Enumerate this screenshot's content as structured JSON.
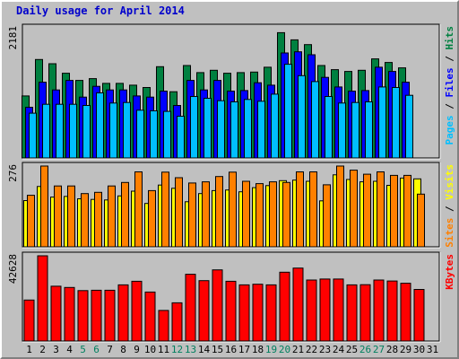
{
  "chart_data": {
    "type": "bar",
    "title": "Daily usage for April 2014",
    "categories": [
      "1",
      "2",
      "3",
      "4",
      "5",
      "6",
      "7",
      "8",
      "9",
      "10",
      "11",
      "12",
      "13",
      "14",
      "15",
      "16",
      "17",
      "18",
      "19",
      "20",
      "21",
      "22",
      "23",
      "24",
      "25",
      "26",
      "27",
      "28",
      "29",
      "30",
      "31"
    ],
    "weekend_categories": [
      "5",
      "6",
      "12",
      "13",
      "19",
      "20",
      "26",
      "27"
    ],
    "panels": [
      {
        "max_label": "2181",
        "ymax": 2181,
        "series": [
          {
            "name": "Hits",
            "color": "#008040",
            "values": [
              1040,
              1650,
              1580,
              1420,
              1300,
              1330,
              1250,
              1250,
              1220,
              1180,
              1530,
              1110,
              1550,
              1430,
              1470,
              1420,
              1430,
              1440,
              1520,
              2100,
              1980,
              1900,
              1550,
              1480,
              1450,
              1470,
              1660,
              1600,
              1510,
              null,
              null
            ]
          },
          {
            "name": "Files",
            "color": "#0000ff",
            "values": [
              850,
              1270,
              1140,
              1300,
              1020,
              1200,
              1140,
              1140,
              1040,
              1020,
              1120,
              880,
              1300,
              1140,
              1300,
              1120,
              1130,
              1260,
              1220,
              1760,
              1780,
              1730,
              1350,
              1190,
              1120,
              1130,
              1520,
              1450,
              1270,
              null,
              null
            ]
          },
          {
            "name": "Pages",
            "color": "#00bfff",
            "values": [
              750,
              900,
              900,
              900,
              880,
              1090,
              920,
              930,
              800,
              790,
              780,
              700,
              1030,
              1000,
              960,
              940,
              980,
              950,
              1070,
              1570,
              1380,
              1280,
              1030,
              920,
              930,
              940,
              1190,
              1180,
              1050,
              null,
              null
            ]
          }
        ]
      },
      {
        "max_label": "276",
        "ymax": 276,
        "series": [
          {
            "name": "Visits",
            "color": "#ffff00",
            "values": [
              158,
              206,
              170,
              172,
              164,
              162,
              160,
              174,
              190,
              148,
              211,
              200,
              154,
              182,
              192,
              194,
              188,
              202,
              209,
              226,
              228,
              224,
              157,
              246,
              230,
              222,
              224,
              210,
              235,
              232,
              null
            ]
          },
          {
            "name": "Sites",
            "color": "#ff8000",
            "values": [
              176,
              276,
              208,
              208,
              182,
              186,
              208,
              220,
              256,
              192,
              255,
              236,
              218,
              222,
              240,
              255,
              224,
              216,
              222,
              220,
              256,
              256,
              212,
              276,
              262,
              248,
              256,
              244,
              244,
              180,
              null
            ]
          }
        ]
      },
      {
        "max_label": "42628",
        "ymax": 42628,
        "series": [
          {
            "name": "KBytes",
            "color": "#ff0000",
            "values": [
              20500,
              42628,
              27400,
              26800,
              25200,
              25400,
              25400,
              28100,
              29900,
              24500,
              15300,
              19100,
              33400,
              30200,
              35600,
              29900,
              28100,
              28400,
              28100,
              34400,
              36500,
              30500,
              31000,
              31000,
              28100,
              28200,
              30500,
              30000,
              28900,
              25800,
              null
            ]
          }
        ]
      }
    ],
    "legend": {
      "top": [
        {
          "text": "Pages",
          "color": "#00bfff"
        },
        {
          "text": " / ",
          "color": "#000000"
        },
        {
          "text": "Files",
          "color": "#0000ff"
        },
        {
          "text": " / ",
          "color": "#000000"
        },
        {
          "text": "Hits",
          "color": "#008040"
        }
      ],
      "middle": [
        {
          "text": "Sites",
          "color": "#ff8000"
        },
        {
          "text": " / ",
          "color": "#000000"
        },
        {
          "text": "Visits",
          "color": "#ffff00"
        }
      ],
      "bottom": [
        {
          "text": "KBytes",
          "color": "#ff0000"
        }
      ]
    },
    "colors": {
      "background": "#c0c0c0",
      "title": "#0000cc",
      "weekend_label": "#00805f",
      "weekday_label": "#000000"
    }
  }
}
